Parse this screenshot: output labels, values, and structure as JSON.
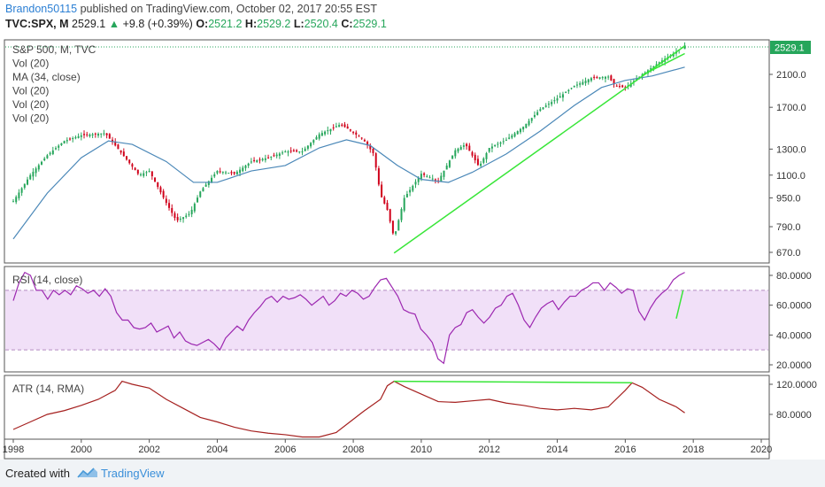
{
  "header": {
    "author": "Brandon50115",
    "published": "published on TradingView.com, October 02, 2017 20:55 EST",
    "symbol": "TVC:SPX, M",
    "last": "2529.1",
    "change": "+9.8 (+0.39%)",
    "o_label": "O:",
    "o_val": "2521.2",
    "h_label": "H:",
    "h_val": "2529.2",
    "l_label": "L:",
    "l_val": "2520.4",
    "c_label": "C:",
    "c_val": "2529.1"
  },
  "colors": {
    "up": "#26a65b",
    "down": "#d0021b",
    "ma": "#4b88b8",
    "rsi": "#9c27b0",
    "rsi_band": "#f1e0f8",
    "atr": "#a5201f",
    "trend": "#39e639",
    "author": "#2b7fd4"
  },
  "footer": {
    "created": "Created with",
    "brand": "TradingView"
  },
  "chart_data": [
    {
      "type": "candlestick",
      "legend": [
        "S&P 500, M, TVC",
        "Vol (20)",
        "MA (34, close)",
        "Vol (20)",
        "Vol (20)",
        "Vol (20)"
      ],
      "price_label": "2529.1",
      "y_scale": "log",
      "y_ticks": [
        "2100.0",
        "1700.0",
        "1300.0",
        "1100.0",
        "950.0",
        "790.0",
        "670.0"
      ],
      "x_ticks": [
        "1998",
        "2000",
        "2002",
        "2004",
        "2006",
        "2008",
        "2010",
        "2012",
        "2014",
        "2016",
        "2018",
        "2020"
      ],
      "price_path": [
        [
          1998.0,
          930
        ],
        [
          1998.5,
          1100
        ],
        [
          1999.0,
          1250
        ],
        [
          1999.5,
          1370
        ],
        [
          2000.0,
          1420
        ],
        [
          2000.7,
          1440
        ],
        [
          2001.0,
          1330
        ],
        [
          2001.7,
          1100
        ],
        [
          2002.0,
          1130
        ],
        [
          2002.5,
          920
        ],
        [
          2002.8,
          820
        ],
        [
          2003.2,
          860
        ],
        [
          2003.5,
          990
        ],
        [
          2004.0,
          1130
        ],
        [
          2004.5,
          1110
        ],
        [
          2005.0,
          1200
        ],
        [
          2005.5,
          1230
        ],
        [
          2006.0,
          1280
        ],
        [
          2006.5,
          1280
        ],
        [
          2007.0,
          1430
        ],
        [
          2007.6,
          1520
        ],
        [
          2007.8,
          1490
        ],
        [
          2008.3,
          1380
        ],
        [
          2008.6,
          1260
        ],
        [
          2008.8,
          970
        ],
        [
          2009.0,
          880
        ],
        [
          2009.2,
          735
        ],
        [
          2009.5,
          950
        ],
        [
          2010.0,
          1110
        ],
        [
          2010.5,
          1060
        ],
        [
          2011.0,
          1290
        ],
        [
          2011.3,
          1340
        ],
        [
          2011.7,
          1160
        ],
        [
          2012.0,
          1310
        ],
        [
          2012.5,
          1380
        ],
        [
          2013.0,
          1500
        ],
        [
          2013.5,
          1680
        ],
        [
          2014.0,
          1800
        ],
        [
          2014.5,
          1950
        ],
        [
          2015.0,
          2050
        ],
        [
          2015.5,
          2070
        ],
        [
          2015.7,
          1950
        ],
        [
          2016.0,
          1930
        ],
        [
          2016.5,
          2100
        ],
        [
          2017.0,
          2270
        ],
        [
          2017.5,
          2430
        ],
        [
          2017.75,
          2529
        ]
      ],
      "ma_path": [
        [
          1998.0,
          730
        ],
        [
          1999.0,
          980
        ],
        [
          2000.0,
          1230
        ],
        [
          2000.8,
          1370
        ],
        [
          2001.5,
          1340
        ],
        [
          2002.5,
          1200
        ],
        [
          2003.3,
          1050
        ],
        [
          2004.0,
          1050
        ],
        [
          2005.0,
          1130
        ],
        [
          2006.0,
          1170
        ],
        [
          2007.0,
          1310
        ],
        [
          2007.8,
          1380
        ],
        [
          2008.5,
          1330
        ],
        [
          2009.3,
          1170
        ],
        [
          2010.0,
          1070
        ],
        [
          2010.8,
          1050
        ],
        [
          2011.5,
          1120
        ],
        [
          2012.5,
          1260
        ],
        [
          2013.5,
          1460
        ],
        [
          2014.5,
          1720
        ],
        [
          2015.3,
          1930
        ],
        [
          2016.0,
          2020
        ],
        [
          2016.8,
          2080
        ],
        [
          2017.75,
          2200
        ]
      ],
      "trendlines": [
        {
          "from": [
            2009.2,
            667
          ],
          "to": [
            2017.75,
            2520
          ]
        },
        {
          "from": [
            2016.5,
            2090
          ],
          "to": [
            2017.75,
            2400
          ]
        }
      ]
    },
    {
      "type": "line",
      "legend": "RSI (14, close)",
      "y_ticks": [
        "80.0000",
        "60.0000",
        "40.0000",
        "20.0000"
      ],
      "band": [
        30,
        70
      ],
      "x_range": [
        1998,
        2017.75
      ],
      "values": [
        63,
        75,
        82,
        80,
        70,
        70,
        64,
        70,
        67,
        70,
        67,
        73,
        71,
        68,
        70,
        66,
        71,
        66,
        55,
        50,
        50,
        45,
        44,
        45,
        48,
        42,
        44,
        46,
        38,
        42,
        36,
        34,
        33,
        35,
        37,
        34,
        30,
        38,
        42,
        46,
        43,
        50,
        55,
        59,
        64,
        66,
        62,
        66,
        64,
        65,
        67,
        64,
        60,
        63,
        66,
        60,
        63,
        68,
        66,
        70,
        68,
        64,
        66,
        72,
        77,
        78,
        72,
        66,
        57,
        55,
        54,
        44,
        40,
        35,
        24,
        21,
        40,
        45,
        47,
        55,
        57,
        52,
        48,
        52,
        58,
        60,
        66,
        68,
        60,
        50,
        45,
        52,
        58,
        61,
        63,
        57,
        62,
        66,
        66,
        70,
        72,
        75,
        75,
        70,
        75,
        72,
        68,
        71,
        70,
        56,
        50,
        58,
        64,
        68,
        71,
        77,
        80,
        82
      ],
      "trendline": {
        "from": [
          2017.5,
          51
        ],
        "to": [
          2017.7,
          70
        ]
      }
    },
    {
      "type": "line",
      "legend": "ATR (14, RMA)",
      "y_ticks": [
        "120.0000",
        "80.0000"
      ],
      "path": [
        [
          1998.0,
          60
        ],
        [
          1998.5,
          70
        ],
        [
          1999.0,
          80
        ],
        [
          1999.5,
          85
        ],
        [
          2000.0,
          92
        ],
        [
          2000.5,
          100
        ],
        [
          2001.0,
          112
        ],
        [
          2001.2,
          124
        ],
        [
          2001.5,
          120
        ],
        [
          2002.0,
          115
        ],
        [
          2002.5,
          100
        ],
        [
          2003.0,
          88
        ],
        [
          2003.5,
          76
        ],
        [
          2004.0,
          70
        ],
        [
          2004.5,
          63
        ],
        [
          2005.0,
          58
        ],
        [
          2005.5,
          55
        ],
        [
          2006.0,
          53
        ],
        [
          2006.5,
          50
        ],
        [
          2007.0,
          50
        ],
        [
          2007.5,
          56
        ],
        [
          2007.9,
          70
        ],
        [
          2008.3,
          84
        ],
        [
          2008.8,
          100
        ],
        [
          2009.0,
          118
        ],
        [
          2009.2,
          124
        ],
        [
          2009.5,
          117
        ],
        [
          2010.0,
          107
        ],
        [
          2010.5,
          97
        ],
        [
          2011.0,
          96
        ],
        [
          2011.5,
          98
        ],
        [
          2012.0,
          100
        ],
        [
          2012.5,
          95
        ],
        [
          2013.0,
          92
        ],
        [
          2013.5,
          88
        ],
        [
          2014.0,
          86
        ],
        [
          2014.5,
          88
        ],
        [
          2015.0,
          86
        ],
        [
          2015.5,
          90
        ],
        [
          2016.0,
          112
        ],
        [
          2016.2,
          122
        ],
        [
          2016.5,
          116
        ],
        [
          2017.0,
          100
        ],
        [
          2017.5,
          90
        ],
        [
          2017.75,
          82
        ]
      ],
      "trendline": {
        "from": [
          2009.2,
          124
        ],
        "to": [
          2016.2,
          122
        ]
      }
    }
  ]
}
